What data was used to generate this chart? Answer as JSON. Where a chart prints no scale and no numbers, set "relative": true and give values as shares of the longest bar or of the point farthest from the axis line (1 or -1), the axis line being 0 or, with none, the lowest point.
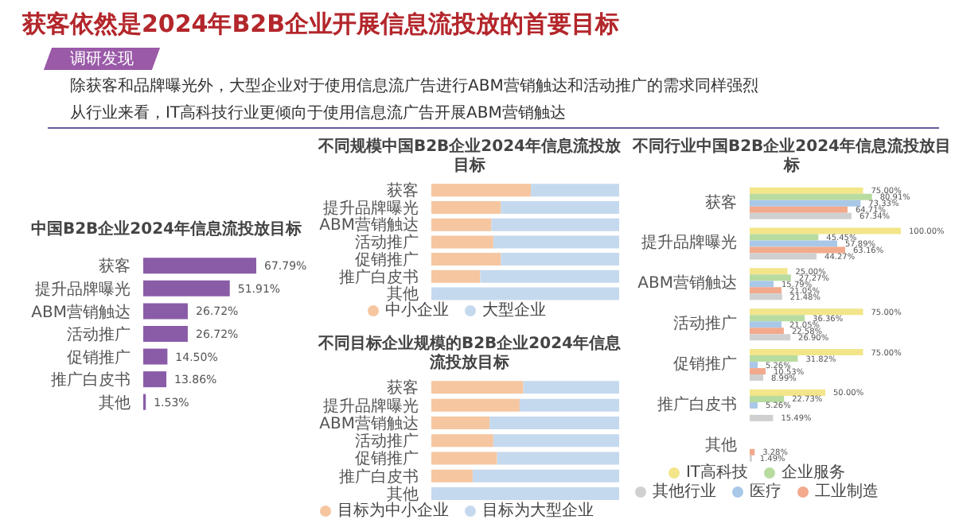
{
  "chart_data": [
    {
      "type": "other",
      "title": "获客依然是2024年B2B企业开展信息流投放的首要目标",
      "annotations": [
        "调研发现",
        "除获客和品牌曝光外，大型企业对于使用信息流广告进行ABM营销触达和活动推广的需求同样强烈",
        "从行业来看，IT高科技行业更倾向于使用信息流广告开展ABM营销触达"
      ]
    },
    {
      "type": "bar",
      "orientation": "horizontal",
      "title": "中国B2B企业2024年信息流投放目标",
      "categories": [
        "获客",
        "提升品牌曝光",
        "ABM营销触达",
        "活动推广",
        "促销推广",
        "推广白皮书",
        "其他"
      ],
      "values": [
        67.79,
        51.91,
        26.72,
        26.72,
        14.5,
        13.86,
        1.53
      ],
      "value_labels": [
        "67.79%",
        "51.91%",
        "26.72%",
        "26.72%",
        "14.50%",
        "13.86%",
        "1.53%"
      ],
      "color": "#8a5ca8"
    },
    {
      "type": "bar",
      "orientation": "horizontal",
      "stacked": true,
      "relative": true,
      "legend": "bottom",
      "title": "不同规模中国B2B企业2024年信息流投放目标",
      "categories": [
        "获客",
        "提升品牌曝光",
        "ABM营销触达",
        "活动推广",
        "促销推广",
        "推广白皮书",
        "其他"
      ],
      "series": [
        {
          "name": "中小企业",
          "color": "#f5c6a0",
          "values": [
            0.53,
            0.37,
            0.32,
            0.33,
            0.37,
            0.26,
            0
          ]
        },
        {
          "name": "大型企业",
          "color": "#c5d9ee",
          "values": [
            0.47,
            0.63,
            0.68,
            0.67,
            0.63,
            0.74,
            1
          ]
        }
      ]
    },
    {
      "type": "bar",
      "orientation": "horizontal",
      "stacked": true,
      "relative": true,
      "legend": "bottom",
      "title": "不同目标企业规模的B2B企业2024年信息流投放目标",
      "categories": [
        "获客",
        "提升品牌曝光",
        "ABM营销触达",
        "活动推广",
        "促销推广",
        "推广白皮书",
        "其他"
      ],
      "series": [
        {
          "name": "目标为中小企业",
          "color": "#f5c6a0",
          "values": [
            0.49,
            0.47,
            0.31,
            0.33,
            0.35,
            0.22,
            0
          ]
        },
        {
          "name": "目标为大型企业",
          "color": "#c5d9ee",
          "values": [
            0.51,
            0.53,
            0.69,
            0.67,
            0.65,
            0.78,
            1
          ]
        }
      ]
    },
    {
      "type": "bar",
      "orientation": "horizontal",
      "legend": "bottom",
      "title": "不同行业中国B2B企业2024年信息流投放目标",
      "categories": [
        "获客",
        "提升品牌曝光",
        "ABM营销触达",
        "活动推广",
        "促销推广",
        "推广白皮书",
        "其他"
      ],
      "series": [
        {
          "name": "IT高科技",
          "color": "#f3e58a",
          "values": [
            75.0,
            100.0,
            25.0,
            75.0,
            75.0,
            50.0,
            null
          ],
          "value_labels": [
            "75.00%",
            "100.00%",
            "25.00%",
            "75.00%",
            "75.00%",
            "50.00%",
            null
          ]
        },
        {
          "name": "企业服务",
          "color": "#b8dca0",
          "values": [
            80.91,
            45.45,
            27.27,
            36.36,
            31.82,
            22.73,
            null
          ],
          "value_labels": [
            "80.91%",
            "45.45%",
            "27.27%",
            "36.36%",
            "31.82%",
            "22.73%",
            null
          ]
        },
        {
          "name": "医疗",
          "color": "#a9c8e8",
          "values": [
            73.33,
            57.89,
            15.79,
            21.05,
            5.26,
            5.26,
            null
          ],
          "value_labels": [
            "73.33%",
            "57.89%",
            "15.79%",
            "21.05%",
            "5.26%",
            "5.26%",
            null
          ]
        },
        {
          "name": "工业制造",
          "color": "#f2a98c",
          "values": [
            64.71,
            63.16,
            21.05,
            22.58,
            10.53,
            null,
            3.28
          ],
          "value_labels": [
            "64.71%",
            "63.16%",
            "21.05%",
            "22.58%",
            "10.53%",
            null,
            "3.28%"
          ]
        },
        {
          "name": "其他行业",
          "color": "#d0d0d0",
          "values": [
            67.34,
            44.27,
            21.48,
            26.9,
            8.99,
            15.49,
            1.49
          ],
          "value_labels": [
            "67.34%",
            "44.27%",
            "21.48%",
            "26.90%",
            "8.99%",
            "15.49%",
            "1.49%"
          ]
        }
      ]
    }
  ]
}
